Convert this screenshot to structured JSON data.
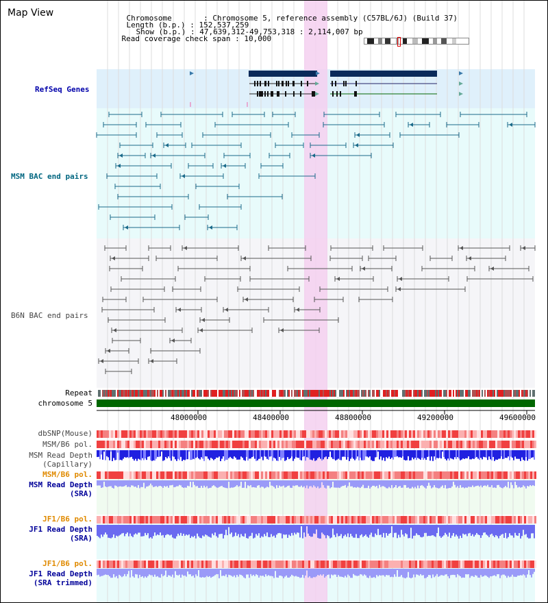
{
  "view": {
    "title": "Map View",
    "info": {
      "chromosome_label": "Chromosome",
      "chromosome_value": "Chromosome 5, reference assembly (C57BL/6J) (Build 37)",
      "length_label": "Length (b.p.)",
      "length_value": "152,537,259",
      "show_label": "Show (b.p.)",
      "show_value": "47,639,312-49,753,318 : 2,114,007 bp",
      "coverage_label": "Read coverage check span",
      "coverage_value": "10,000"
    }
  },
  "tracks": {
    "refseq": "RefSeq Genes",
    "msm_bac": "MSM BAC end pairs",
    "b6n_bac": "B6N BAC end pairs",
    "repeat": "Repeat",
    "chromosome": "chromosome 5",
    "dbsnp": "dbSNP(Mouse)",
    "msm_pol": "MSM/B6 pol.",
    "msm_depth_cap_1": "MSM Read Depth",
    "msm_depth_cap_2": "(Capillary)",
    "msm_pol2": "MSM/B6 pol.",
    "msm_depth_sra_1": "MSM Read Depth",
    "msm_depth_sra_2": "(SRA)",
    "jf1_pol": "JF1/B6 pol.",
    "jf1_depth_sra_1": "JF1 Read Depth",
    "jf1_depth_sra_2": "(SRA)",
    "jf1_pol2": "JF1/B6 pol.",
    "jf1_depth_trim_1": "JF1 Read Depth",
    "jf1_depth_trim_2": "(SRA trimmed)"
  },
  "axis": {
    "ticks": [
      "48000000",
      "48400000",
      "48800000",
      "49200000",
      "49600000"
    ]
  },
  "colors": {
    "refseq_label": "#0000aa",
    "msm_label": "#006680",
    "b6n_label": "#444444",
    "pol_orange": "#e08a00",
    "depth_blue": "#000099",
    "highlight": "#f5d0f0",
    "chromosome": "#006600"
  }
}
